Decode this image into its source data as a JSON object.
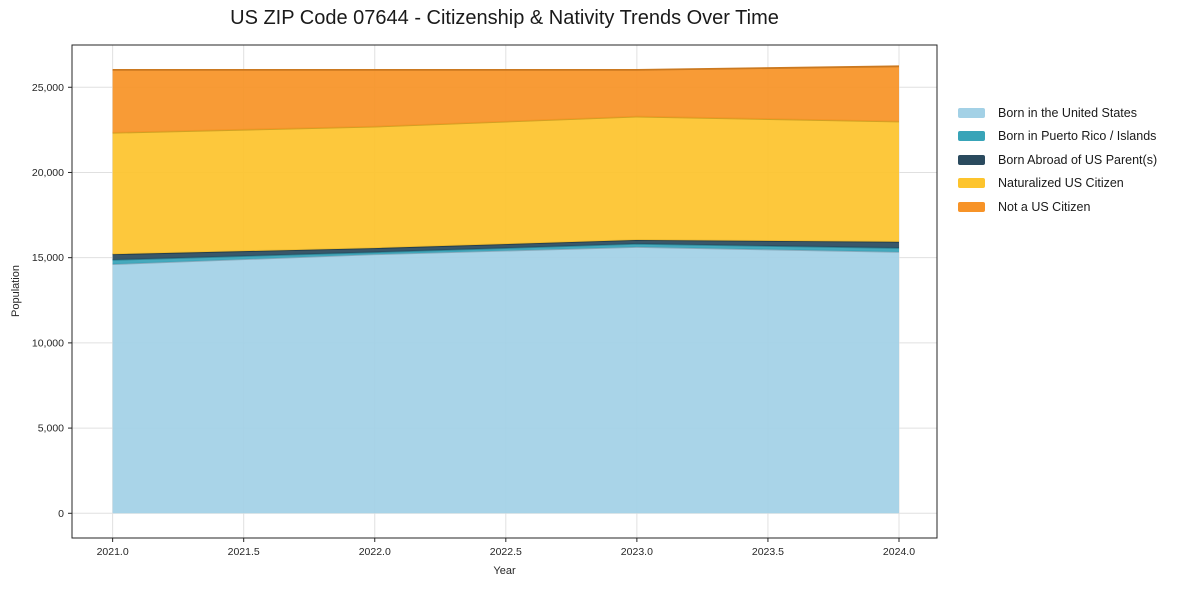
{
  "page": {
    "background": "#ffffff"
  },
  "chart_data": {
    "type": "area",
    "stacked": true,
    "title": "US ZIP Code 07644 - Citizenship & Nativity Trends Over Time",
    "xlabel": "Year",
    "ylabel": "Population",
    "x": [
      2021,
      2022,
      2023,
      2024
    ],
    "series": [
      {
        "name": "Born in the United States",
        "color": "#a3d1e6",
        "values": [
          14620,
          15200,
          15630,
          15340
        ]
      },
      {
        "name": "Born in Puerto Rico / Islands",
        "color": "#38a4b8",
        "values": [
          250,
          120,
          180,
          230
        ]
      },
      {
        "name": "Born Abroad of US Parent(s)",
        "color": "#2a4a5e",
        "values": [
          330,
          240,
          230,
          360
        ]
      },
      {
        "name": "Naturalized US Citizen",
        "color": "#fdc42d",
        "values": [
          7130,
          7130,
          7240,
          7060
        ]
      },
      {
        "name": "Not a US Citizen",
        "color": "#f79327",
        "values": [
          3690,
          3330,
          2740,
          3240
        ]
      }
    ],
    "stack_totals": [
      26020,
      26020,
      26020,
      26230
    ],
    "xticks": {
      "values": [
        2021.0,
        2021.5,
        2022.0,
        2022.5,
        2023.0,
        2023.5,
        2024.0
      ],
      "labels": [
        "2021.0",
        "2021.5",
        "2022.0",
        "2022.5",
        "2023.0",
        "2023.5",
        "2024.0"
      ]
    },
    "yticks": {
      "values": [
        0,
        5000,
        10000,
        15000,
        20000,
        25000
      ],
      "labels": [
        "0",
        "5,000",
        "10,000",
        "15,000",
        "20,000",
        "25,000"
      ]
    },
    "xlim": [
      2020.845,
      2024.145
    ],
    "ylim": [
      -1450,
      27480
    ],
    "grid": true,
    "grid_color": "#e0e0e0",
    "axis_color": "#262626",
    "text_color": "#262626",
    "legend_position": "right-outside"
  }
}
